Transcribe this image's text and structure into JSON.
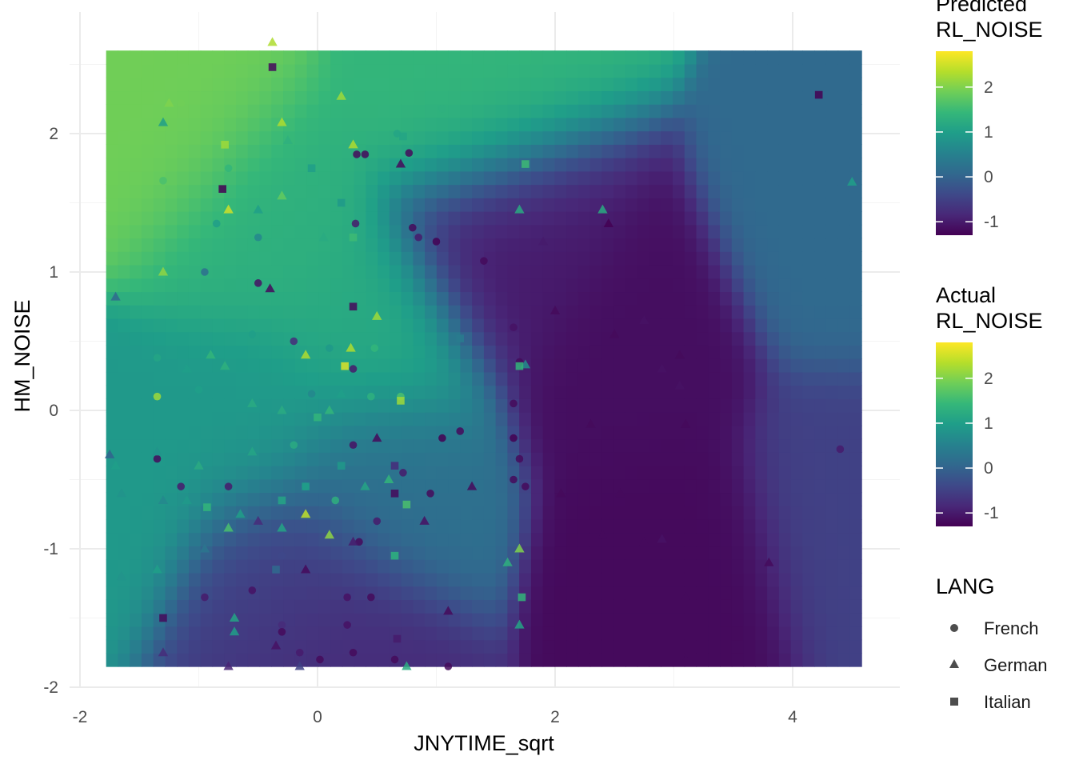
{
  "chart_data": {
    "type": "scatter",
    "subtype": "scatter over interpolated heatmap surface",
    "xlabel": "JNYTIME_sqrt",
    "ylabel": "HM_NOISE",
    "xlim": [
      -2.0,
      4.9
    ],
    "ylim": [
      -2.05,
      2.75
    ],
    "x_ticks": [
      -2,
      0,
      2,
      4
    ],
    "y_ticks": [
      -2,
      -1,
      0,
      1,
      2
    ],
    "grid": true,
    "surface": {
      "x_range": [
        -1.78,
        4.58
      ],
      "y_range": [
        -1.85,
        2.6
      ],
      "peaks": [
        {
          "x": -1.2,
          "y": 2.05,
          "value": 1.9
        },
        {
          "x": -0.5,
          "y": 1.3,
          "value": 1.3
        },
        {
          "x": 1.3,
          "y": 2.25,
          "value": 1.4
        },
        {
          "x": 0.45,
          "y": 0.5,
          "value": 1.2
        },
        {
          "x": -0.6,
          "y": -0.1,
          "value": 0.9
        },
        {
          "x": -1.65,
          "y": -0.5,
          "value": 0.9
        },
        {
          "x": 0.55,
          "y": -0.5,
          "value": 0.2
        },
        {
          "x": 2.7,
          "y": 0.3,
          "value": -1.15
        },
        {
          "x": 3.0,
          "y": -1.0,
          "value": -1.2
        },
        {
          "x": 1.6,
          "y": 1.2,
          "value": -1.0
        },
        {
          "x": 0.1,
          "y": -1.7,
          "value": -0.8
        },
        {
          "x": -0.3,
          "y": -1.2,
          "value": -0.5
        },
        {
          "x": 4.5,
          "y": 1.2,
          "value": 0.1
        },
        {
          "x": 4.5,
          "y": -0.6,
          "value": -0.5
        }
      ]
    },
    "color_scale": {
      "name": "viridis",
      "limits": [
        -1.3,
        2.8
      ],
      "stops": [
        "#440154",
        "#482878",
        "#3e4989",
        "#31688e",
        "#26828e",
        "#1f9e89",
        "#35b779",
        "#6ece58",
        "#b5de2b",
        "#fde725"
      ]
    },
    "series": [
      {
        "name": "French",
        "shape": "circle",
        "points": [
          [
            -1.15,
            2.22,
            1.9
          ],
          [
            0.67,
            2.0,
            1.1
          ],
          [
            1.05,
            2.18,
            1.3
          ],
          [
            -0.75,
            1.75,
            1.4
          ],
          [
            -1.3,
            1.66,
            1.6
          ],
          [
            0.4,
            1.85,
            -1.2
          ],
          [
            0.77,
            1.86,
            -1.2
          ],
          [
            0.33,
            1.85,
            -1.2
          ],
          [
            -0.85,
            1.35,
            1.0
          ],
          [
            -0.5,
            1.25,
            0.6
          ],
          [
            0.32,
            1.35,
            -1.0
          ],
          [
            0.85,
            1.25,
            -1.0
          ],
          [
            0.8,
            1.32,
            -1.2
          ],
          [
            1.0,
            1.22,
            -1.3
          ],
          [
            1.4,
            1.08,
            -1.2
          ],
          [
            -0.95,
            1.0,
            0.2
          ],
          [
            -0.5,
            0.92,
            -1.1
          ],
          [
            -0.2,
            0.5,
            -0.8
          ],
          [
            0.1,
            0.45,
            0.9
          ],
          [
            0.48,
            0.45,
            1.4
          ],
          [
            -1.35,
            0.38,
            1.1
          ],
          [
            -1.35,
            0.1,
            2.2
          ],
          [
            0.3,
            0.3,
            -1.0
          ],
          [
            0.45,
            0.1,
            1.3
          ],
          [
            0.7,
            0.1,
            1.6
          ],
          [
            -1.35,
            -0.35,
            -1.2
          ],
          [
            -1.15,
            -0.55,
            -1.0
          ],
          [
            -0.75,
            -0.55,
            -1.0
          ],
          [
            -0.1,
            -0.55,
            0.8
          ],
          [
            0.3,
            -0.25,
            -1.1
          ],
          [
            0.5,
            -0.8,
            -1.0
          ],
          [
            0.95,
            -0.6,
            -1.2
          ],
          [
            1.05,
            -0.2,
            -1.3
          ],
          [
            1.2,
            -0.15,
            -1.2
          ],
          [
            1.65,
            -0.2,
            -1.3
          ],
          [
            1.7,
            -0.35,
            -1.2
          ],
          [
            1.75,
            -0.55,
            -1.2
          ],
          [
            1.65,
            -0.5,
            -1.2
          ],
          [
            1.7,
            0.35,
            -1.2
          ],
          [
            1.65,
            0.6,
            -1.1
          ],
          [
            1.65,
            0.05,
            -1.2
          ],
          [
            -0.95,
            -1.35,
            -1.0
          ],
          [
            -0.55,
            -1.3,
            -1.1
          ],
          [
            -0.3,
            -1.05,
            -0.4
          ],
          [
            0.25,
            -1.35,
            -1.1
          ],
          [
            0.45,
            -1.35,
            -1.2
          ],
          [
            0.25,
            -1.55,
            -1.1
          ],
          [
            0.3,
            -1.75,
            -1.2
          ],
          [
            0.02,
            -1.8,
            -1.2
          ],
          [
            -0.15,
            -1.75,
            -1.0
          ],
          [
            -0.3,
            -1.55,
            -0.8
          ],
          [
            -0.3,
            -1.6,
            -1.2
          ],
          [
            0.65,
            -1.8,
            -1.2
          ],
          [
            0.65,
            -1.05,
            0.3
          ],
          [
            1.1,
            -1.85,
            -1.2
          ],
          [
            4.4,
            -0.28,
            -1.0
          ],
          [
            0.72,
            -0.45,
            -1.0
          ],
          [
            0.35,
            -0.95,
            -1.2
          ],
          [
            -1.0,
            0.15,
            1.0
          ],
          [
            -0.55,
            0.55,
            1.0
          ],
          [
            -0.05,
            0.12,
            0.6
          ],
          [
            0.15,
            -0.65,
            1.3
          ],
          [
            -0.2,
            -0.25,
            1.2
          ]
        ]
      },
      {
        "name": "German",
        "shape": "triangle",
        "points": [
          [
            -0.38,
            2.66,
            2.3
          ],
          [
            -0.3,
            2.08,
            2.3
          ],
          [
            0.2,
            2.27,
            2.2
          ],
          [
            -1.3,
            2.08,
            1.0
          ],
          [
            -1.25,
            2.22,
            2.0
          ],
          [
            0.7,
            1.78,
            -1.2
          ],
          [
            1.7,
            1.45,
            1.2
          ],
          [
            2.4,
            1.45,
            1.2
          ],
          [
            2.45,
            1.35,
            -1.3
          ],
          [
            1.9,
            1.22,
            -1.0
          ],
          [
            4.5,
            1.65,
            1.0
          ],
          [
            -1.3,
            1.0,
            2.1
          ],
          [
            -0.3,
            1.55,
            1.8
          ],
          [
            -0.5,
            1.45,
            1.0
          ],
          [
            -0.75,
            1.45,
            2.5
          ],
          [
            0.05,
            1.25,
            1.2
          ],
          [
            -0.4,
            0.88,
            -1.2
          ],
          [
            -1.7,
            0.82,
            0.1
          ],
          [
            2.0,
            0.72,
            -1.2
          ],
          [
            2.75,
            0.65,
            -1.1
          ],
          [
            2.5,
            0.55,
            -1.2
          ],
          [
            3.05,
            0.4,
            -1.2
          ],
          [
            2.9,
            0.3,
            -1.1
          ],
          [
            3.05,
            0.18,
            -1.1
          ],
          [
            3.1,
            -0.1,
            -1.2
          ],
          [
            2.3,
            -0.1,
            -1.2
          ],
          [
            2.05,
            -0.6,
            -1.2
          ],
          [
            2.55,
            -0.6,
            -1.2
          ],
          [
            2.4,
            -0.9,
            -1.2
          ],
          [
            2.75,
            -0.95,
            -1.2
          ],
          [
            2.9,
            -0.93,
            -1.1
          ],
          [
            3.8,
            -1.1,
            -1.2
          ],
          [
            3.1,
            -1.35,
            -1.2
          ],
          [
            3.1,
            -1.8,
            -1.2
          ],
          [
            1.1,
            -1.45,
            -1.2
          ],
          [
            1.7,
            -1.55,
            1.1
          ],
          [
            1.7,
            -1.0,
            2.0
          ],
          [
            1.6,
            -1.1,
            1.3
          ],
          [
            1.3,
            -0.55,
            -1.2
          ],
          [
            -1.75,
            -0.32,
            0.0
          ],
          [
            -1.7,
            -0.4,
            1.0
          ],
          [
            -1.65,
            -0.6,
            0.8
          ],
          [
            -1.65,
            -1.2,
            0.8
          ],
          [
            -1.35,
            -0.3,
            0.8
          ],
          [
            -1.3,
            -0.65,
            0.6
          ],
          [
            -1.1,
            -0.65,
            0.9
          ],
          [
            -0.95,
            -1.0,
            0.3
          ],
          [
            -0.75,
            -0.85,
            1.6
          ],
          [
            -0.65,
            -0.75,
            1.0
          ],
          [
            -0.5,
            -0.8,
            -0.8
          ],
          [
            -0.3,
            -0.85,
            1.1
          ],
          [
            -0.1,
            -0.75,
            2.4
          ],
          [
            0.1,
            -0.9,
            2.1
          ],
          [
            0.3,
            -0.95,
            -1.0
          ],
          [
            -0.1,
            -1.15,
            -1.2
          ],
          [
            -0.7,
            -1.5,
            1.1
          ],
          [
            -0.35,
            -1.7,
            -1.1
          ],
          [
            -0.75,
            -1.85,
            -0.9
          ],
          [
            -0.15,
            -1.85,
            -0.5
          ],
          [
            0.75,
            -1.85,
            1.2
          ],
          [
            -0.7,
            -1.6,
            1.0
          ],
          [
            -1.35,
            -1.15,
            1.0
          ],
          [
            -1.3,
            -1.75,
            -0.8
          ],
          [
            -0.3,
            0.0,
            1.2
          ],
          [
            0.6,
            -0.5,
            1.4
          ],
          [
            0.5,
            0.68,
            2.2
          ],
          [
            0.28,
            0.45,
            2.3
          ],
          [
            -0.25,
            1.95,
            1.3
          ],
          [
            0.3,
            1.92,
            2.3
          ],
          [
            0.1,
            0.0,
            1.4
          ],
          [
            0.4,
            -0.55,
            1.1
          ],
          [
            -1.1,
            0.3,
            1.0
          ],
          [
            -0.55,
            0.05,
            1.2
          ],
          [
            -0.9,
            0.4,
            1.4
          ],
          [
            1.75,
            0.33,
            0.7
          ],
          [
            -0.1,
            0.4,
            2.3
          ],
          [
            -1.0,
            -0.4,
            1.2
          ],
          [
            -0.55,
            -0.3,
            1.1
          ],
          [
            0.9,
            -0.8,
            -1.1
          ],
          [
            0.5,
            -0.2,
            -1.2
          ],
          [
            -0.78,
            0.32,
            1.3
          ],
          [
            0.2,
            0.12,
            1.0
          ]
        ]
      },
      {
        "name": "Italian",
        "shape": "square",
        "points": [
          [
            -0.38,
            2.48,
            -1.2
          ],
          [
            0.72,
            1.98,
            1.1
          ],
          [
            1.75,
            1.78,
            1.5
          ],
          [
            -0.78,
            1.92,
            2.2
          ],
          [
            -0.8,
            1.6,
            -1.3
          ],
          [
            0.2,
            1.5,
            0.9
          ],
          [
            -0.05,
            1.75,
            1.0
          ],
          [
            0.3,
            1.25,
            1.5
          ],
          [
            0.3,
            0.75,
            -1.2
          ],
          [
            1.2,
            0.52,
            0.4
          ],
          [
            1.7,
            0.32,
            1.4
          ],
          [
            0.23,
            0.32,
            2.6
          ],
          [
            0.7,
            0.07,
            2.2
          ],
          [
            -0.93,
            -0.7,
            1.4
          ],
          [
            0.75,
            -0.68,
            1.6
          ],
          [
            0.65,
            -0.4,
            -0.8
          ],
          [
            0.65,
            -0.6,
            -1.2
          ],
          [
            0.65,
            -1.05,
            1.3
          ],
          [
            -0.35,
            -1.15,
            0.1
          ],
          [
            0.67,
            -1.65,
            -1.0
          ],
          [
            1.72,
            -1.35,
            1.4
          ],
          [
            -1.3,
            -1.5,
            -1.2
          ],
          [
            4.22,
            2.28,
            -1.3
          ],
          [
            0.0,
            -0.05,
            1.4
          ],
          [
            -0.1,
            -0.55,
            1.0
          ],
          [
            0.2,
            -0.4,
            0.9
          ],
          [
            -0.3,
            -0.65,
            1.1
          ]
        ]
      }
    ],
    "legends": {
      "predicted": {
        "title_line1": "Predicted",
        "title_line2": "RL_NOISE",
        "ticks": [
          2,
          1,
          0,
          -1
        ]
      },
      "actual": {
        "title_line1": "Actual",
        "title_line2": "RL_NOISE",
        "ticks": [
          2,
          1,
          0,
          -1
        ]
      },
      "shape": {
        "title": "LANG",
        "items": [
          "French",
          "German",
          "Italian"
        ]
      }
    },
    "point_color": "#555555"
  }
}
